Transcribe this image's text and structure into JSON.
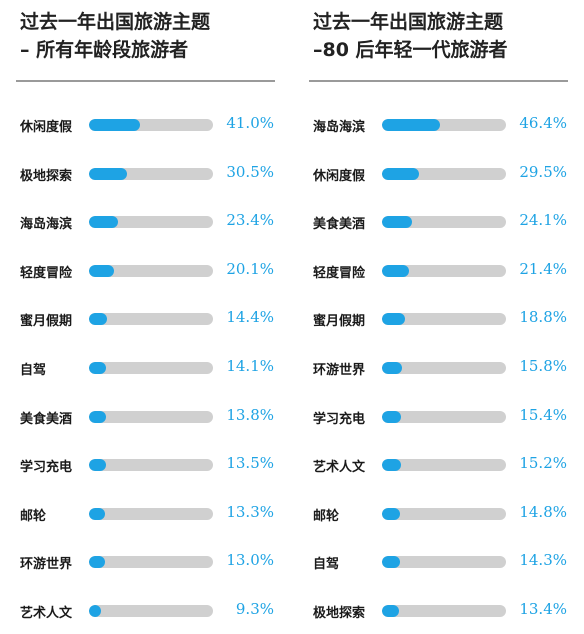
{
  "accent_color": "#1ea3e4",
  "track_color": "#d0d0d0",
  "chart_data": [
    {
      "type": "bar",
      "title": "过去一年出国旅游主题\n– 所有年龄段旅游者",
      "categories": [
        "休闲度假",
        "极地探索",
        "海岛海滨",
        "轻度冒险",
        "蜜月假期",
        "自驾",
        "美食美酒",
        "学习充电",
        "邮轮",
        "环游世界",
        "艺术人文"
      ],
      "values": [
        41.0,
        30.5,
        23.4,
        20.1,
        14.4,
        14.1,
        13.8,
        13.5,
        13.3,
        13.0,
        9.3
      ],
      "value_labels": [
        "41.0%",
        "30.5%",
        "23.4%",
        "20.1%",
        "14.4%",
        "14.1%",
        "13.8%",
        "13.5%",
        "13.3%",
        "13.0%",
        "9.3%"
      ],
      "xlim": [
        0,
        100
      ]
    },
    {
      "type": "bar",
      "title": "过去一年出国旅游主题\n–80 后年轻一代旅游者",
      "categories": [
        "海岛海滨",
        "休闲度假",
        "美食美酒",
        "轻度冒险",
        "蜜月假期",
        "环游世界",
        "学习充电",
        "艺术人文",
        "邮轮",
        "自驾",
        "极地探索"
      ],
      "values": [
        46.4,
        29.5,
        24.1,
        21.4,
        18.8,
        15.8,
        15.4,
        15.2,
        14.8,
        14.3,
        13.4
      ],
      "value_labels": [
        "46.4%",
        "29.5%",
        "24.1%",
        "21.4%",
        "18.8%",
        "15.8%",
        "15.4%",
        "15.2%",
        "14.8%",
        "14.3%",
        "13.4%"
      ],
      "xlim": [
        0,
        100
      ]
    }
  ]
}
